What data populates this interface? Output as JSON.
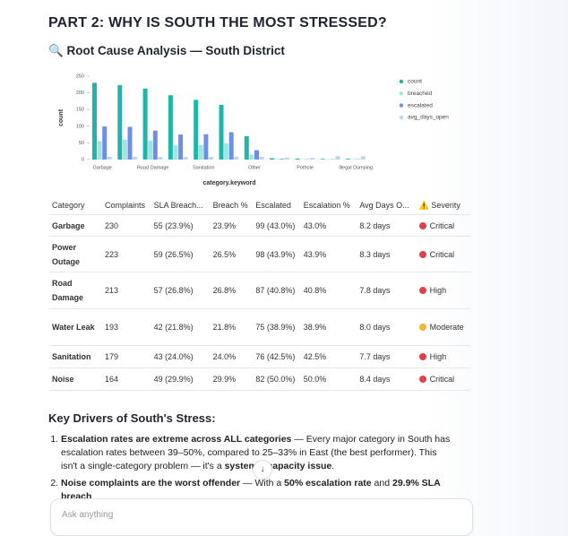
{
  "header": {
    "title": "PART 2: WHY IS SOUTH THE MOST STRESSED?",
    "subtitle": "🔍 Root Cause Analysis — South District"
  },
  "chart_data": {
    "type": "bar",
    "x_label": "category.keyword",
    "y_label": "count",
    "categories": [
      "Garbage",
      null,
      "Road Damage",
      null,
      "Sanitation",
      null,
      "Other",
      null,
      "Pothole",
      null,
      "Illegal Dumping"
    ],
    "series": [
      {
        "name": "count",
        "color": "#1fb5a8",
        "values": [
          230,
          223,
          213,
          193,
          179,
          164,
          70,
          4,
          3,
          2,
          2
        ]
      },
      {
        "name": "breached",
        "color": "#9fe6df",
        "values": [
          55,
          59,
          57,
          42,
          43,
          49,
          15,
          2,
          1,
          1,
          1
        ]
      },
      {
        "name": "escalated",
        "color": "#6e8fe6",
        "values": [
          99,
          98,
          87,
          75,
          76,
          82,
          28,
          2,
          1,
          1,
          1
        ]
      },
      {
        "name": "avg_days_open",
        "color": "#bcd3f4",
        "values": [
          8.2,
          8.3,
          7.8,
          8.0,
          7.7,
          8.4,
          8,
          6,
          5,
          10,
          10
        ]
      }
    ],
    "ylim": [
      0,
      250
    ],
    "yticks": [
      0,
      50,
      100,
      150,
      200,
      250
    ],
    "legend": "right"
  },
  "table": {
    "headers": [
      "Category",
      "Complaints",
      "SLA Breach...",
      "Breach %",
      "Escalated",
      "Escalation %",
      "Avg Days O...",
      "⚠️ Severity"
    ],
    "rows": [
      [
        "Garbage",
        "230",
        "55 (23.9%)",
        "23.9%",
        "99 (43.0%)",
        "43.0%",
        "8.2 days",
        "Critical"
      ],
      [
        "Power Outage",
        "223",
        "59 (26.5%)",
        "26.5%",
        "98 (43.9%)",
        "43.9%",
        "8.3 days",
        "Critical"
      ],
      [
        "Road Damage",
        "213",
        "57 (26.8%)",
        "26.8%",
        "87 (40.8%)",
        "40.8%",
        "7.8 days",
        "High"
      ],
      [
        "Water Leak",
        "193",
        "42 (21.8%)",
        "21.8%",
        "75 (38.9%)",
        "38.9%",
        "8.0 days",
        "Moderate"
      ],
      [
        "Sanitation",
        "179",
        "43 (24.0%)",
        "24.0%",
        "76 (42.5%)",
        "42.5%",
        "7.7 days",
        "High"
      ],
      [
        "Noise",
        "164",
        "49 (29.9%)",
        "29.9%",
        "82 (50.0%)",
        "50.0%",
        "8.4 days",
        "Critical"
      ]
    ],
    "severity_colors": {
      "Critical": "#e0404c",
      "High": "#e0404c",
      "Moderate": "#f2b632"
    }
  },
  "drivers": {
    "title": "Key Drivers of South's Stress:",
    "items": [
      [
        {
          "text": "Escalation rates are extreme across ALL categories",
          "bold": true
        },
        {
          "text": " — Every major category in South has escalation rates between 39–50%, compared to 25–33% in East (the best performer). This isn't a single-category problem — it's a ",
          "bold": false
        },
        {
          "text": "systemic capacity issue",
          "bold": true
        },
        {
          "text": ".",
          "bold": false
        }
      ],
      [
        {
          "text": "Noise complaints are the worst offender",
          "bold": true
        },
        {
          "text": " — With a ",
          "bold": false
        },
        {
          "text": "50% escalation rate",
          "bold": true
        },
        {
          "text": " and ",
          "bold": false
        },
        {
          "text": "29.9% SLA breach",
          "bold": true
        }
      ]
    ]
  },
  "input": {
    "placeholder": "Ask anything"
  }
}
